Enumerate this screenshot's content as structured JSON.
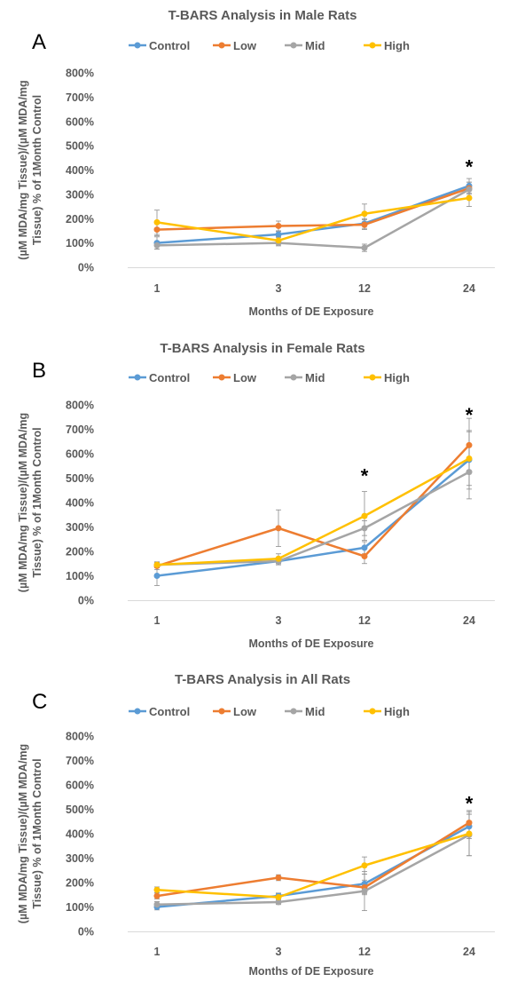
{
  "colors": {
    "control": "#5B9BD5",
    "low": "#ED7D31",
    "mid": "#A5A5A5",
    "high": "#FFC000",
    "text": "#595959",
    "axis": "#D9D9D9",
    "error": "#8C8C8C"
  },
  "chart_data": [
    {
      "panel": "A",
      "type": "line",
      "title": "T-BARS Analysis in Male Rats",
      "xlabel": "Months of DE Exposure",
      "ylabel_lines": [
        "(µM MDA/mg Tissue)/(µM MDA/mg",
        "Tissue) % of 1Month Control"
      ],
      "categories": [
        "1",
        "3",
        "12",
        "24"
      ],
      "yticks": [
        "0%",
        "100%",
        "200%",
        "300%",
        "400%",
        "500%",
        "600%",
        "700%",
        "800%"
      ],
      "ylim": [
        0,
        800
      ],
      "unit": "%",
      "grid": false,
      "legend": "top",
      "significance": [
        {
          "category": "24",
          "label": "*",
          "value": 430
        }
      ],
      "series": [
        {
          "name": "Control",
          "values": [
            100,
            135,
            180,
            335
          ],
          "errors": [
            25,
            12,
            20,
            30
          ]
        },
        {
          "name": "Low",
          "values": [
            155,
            170,
            175,
            325
          ],
          "errors": [
            25,
            20,
            20,
            25
          ]
        },
        {
          "name": "Mid",
          "values": [
            90,
            100,
            80,
            320
          ],
          "errors": [
            15,
            12,
            15,
            30
          ]
        },
        {
          "name": "High",
          "values": [
            185,
            110,
            220,
            285
          ],
          "errors": [
            50,
            15,
            40,
            35
          ]
        }
      ]
    },
    {
      "panel": "B",
      "type": "line",
      "title": "T-BARS Analysis in Female Rats",
      "xlabel": "Months of DE Exposure",
      "ylabel_lines": [
        "(µM MDA/mg Tissue)/(µM MDA/mg",
        "Tissue) % of 1Month Control"
      ],
      "categories": [
        "1",
        "3",
        "12",
        "24"
      ],
      "yticks": [
        "0%",
        "100%",
        "200%",
        "300%",
        "400%",
        "500%",
        "600%",
        "700%",
        "800%"
      ],
      "ylim": [
        0,
        800
      ],
      "unit": "%",
      "grid": false,
      "legend": "top",
      "significance": [
        {
          "category": "12",
          "label": "*",
          "value": 525
        },
        {
          "category": "24",
          "label": "*",
          "value": 775
        }
      ],
      "series": [
        {
          "name": "Control",
          "values": [
            100,
            160,
            215,
            575
          ],
          "errors": [
            40,
            15,
            25,
            120
          ]
        },
        {
          "name": "Low",
          "values": [
            140,
            295,
            180,
            635
          ],
          "errors": [
            15,
            75,
            30,
            110
          ]
        },
        {
          "name": "Mid",
          "values": [
            145,
            160,
            295,
            525
          ],
          "errors": [
            12,
            15,
            30,
            110
          ]
        },
        {
          "name": "High",
          "values": [
            145,
            170,
            345,
            580
          ],
          "errors": [
            12,
            20,
            100,
            110
          ]
        }
      ]
    },
    {
      "panel": "C",
      "type": "line",
      "title": "T-BARS Analysis in All Rats",
      "xlabel": "Months of DE Exposure",
      "ylabel_lines": [
        "(µM MDA/mg Tissue)/(µM MDA/mg",
        "Tissue) % of 1Month Control"
      ],
      "categories": [
        "1",
        "3",
        "12",
        "24"
      ],
      "yticks": [
        "0%",
        "100%",
        "200%",
        "300%",
        "400%",
        "500%",
        "600%",
        "700%",
        "800%"
      ],
      "ylim": [
        0,
        800
      ],
      "unit": "%",
      "grid": false,
      "legend": "top",
      "significance": [
        {
          "category": "24",
          "label": "*",
          "value": 540
        }
      ],
      "series": [
        {
          "name": "Control",
          "values": [
            100,
            145,
            195,
            430
          ],
          "errors": [
            12,
            12,
            40,
            50
          ]
        },
        {
          "name": "Low",
          "values": [
            145,
            220,
            180,
            445
          ],
          "errors": [
            12,
            12,
            30,
            50
          ]
        },
        {
          "name": "Mid",
          "values": [
            110,
            120,
            165,
            395
          ],
          "errors": [
            12,
            10,
            80,
            85
          ]
        },
        {
          "name": "High",
          "values": [
            170,
            140,
            270,
            400
          ],
          "errors": [
            12,
            15,
            35,
            90
          ]
        }
      ]
    }
  ]
}
